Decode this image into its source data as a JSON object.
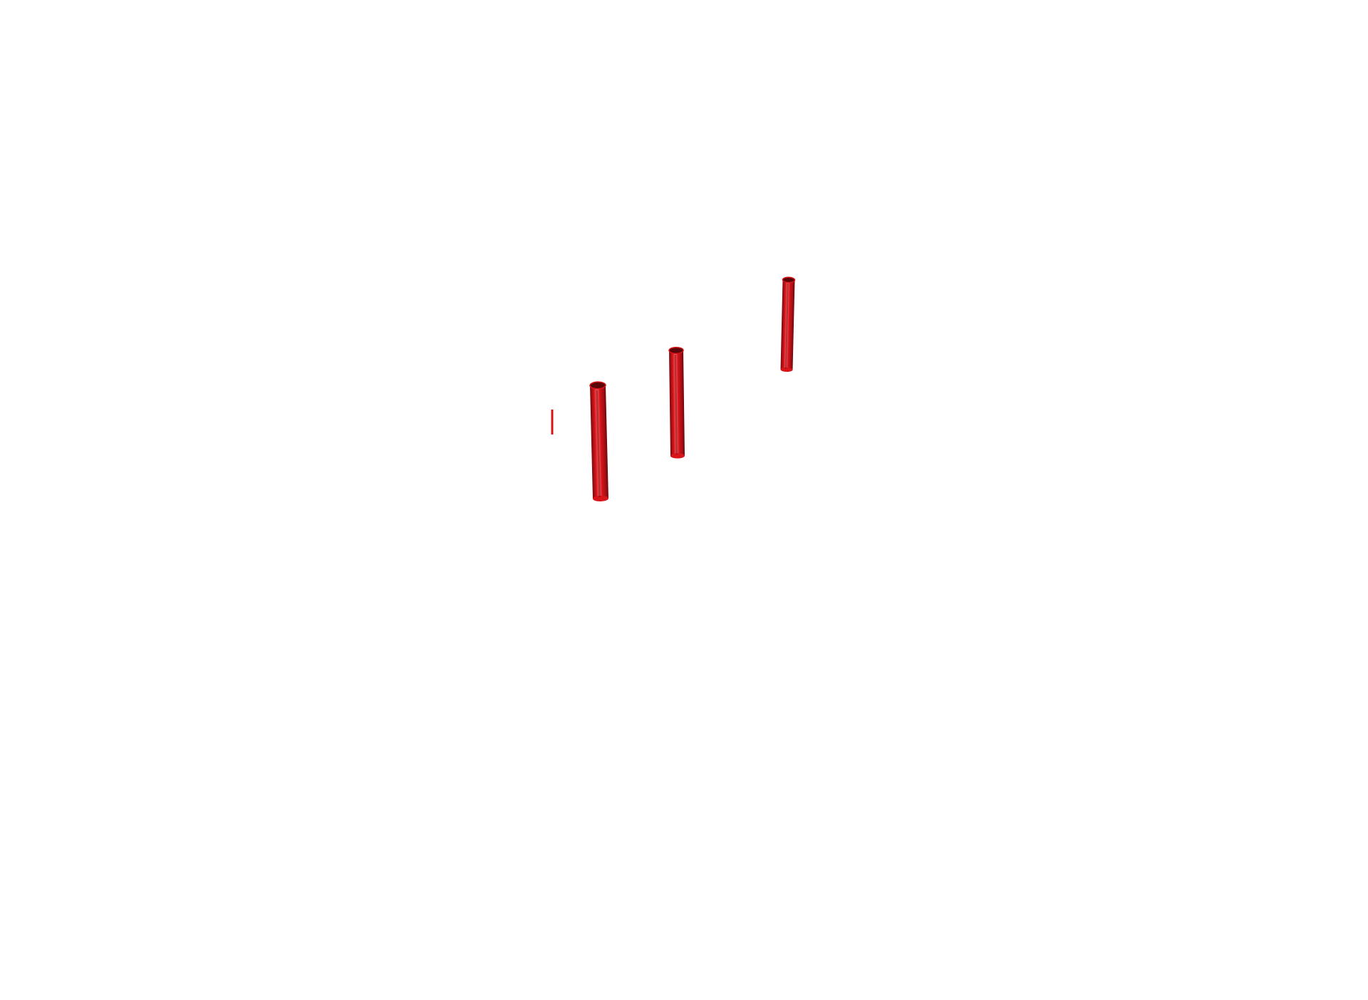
{
  "scene": {
    "background_color": "#ffffff",
    "rod_color": "#d8141b",
    "rod_highlight_color": "#ff6a6a",
    "rod_shadow_color": "#7a0a0e",
    "rod_top_color": "#5a0508",
    "objects": [
      {
        "name": "rod-fragment-left",
        "kind": "fragment"
      },
      {
        "name": "rod-left",
        "kind": "cylinder"
      },
      {
        "name": "rod-middle",
        "kind": "cylinder"
      },
      {
        "name": "rod-right",
        "kind": "cylinder"
      }
    ]
  }
}
